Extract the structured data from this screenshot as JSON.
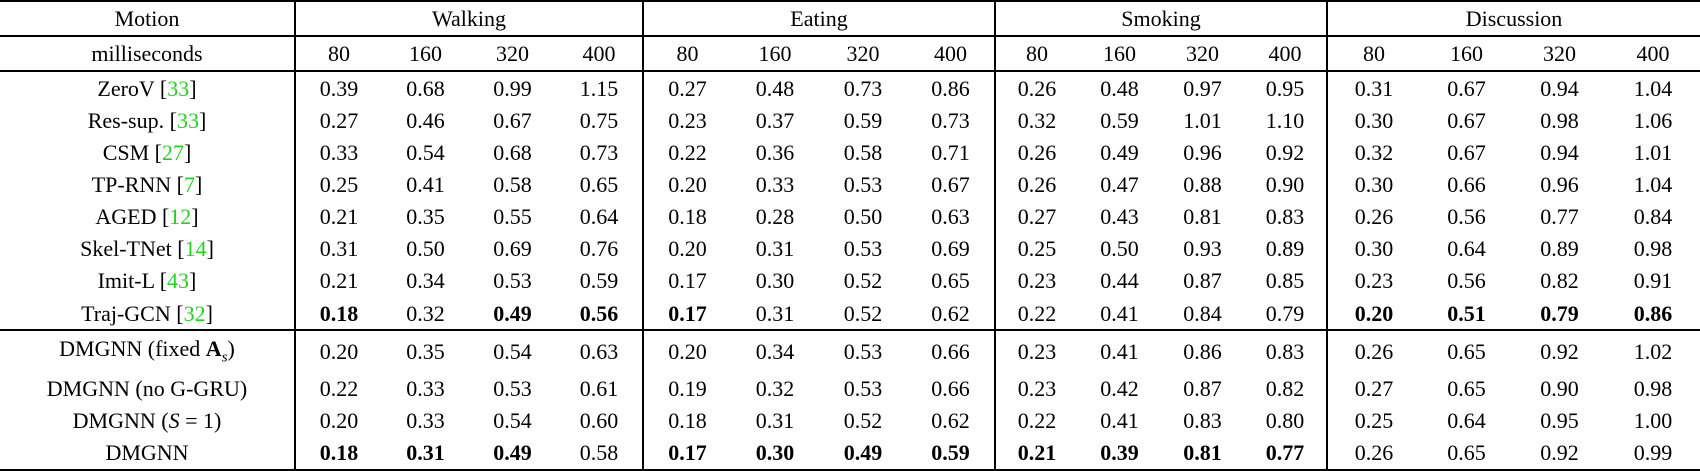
{
  "table": {
    "header": {
      "motion_label": "Motion",
      "milliseconds_label": "milliseconds",
      "groups": [
        "Walking",
        "Eating",
        "Smoking",
        "Discussion"
      ],
      "timesteps": [
        "80",
        "160",
        "320",
        "400"
      ]
    },
    "colors": {
      "citation_green": "#1fd31f",
      "text_black": "#000000",
      "background": "#ffffff"
    },
    "rows": [
      {
        "label_html": "ZeroV [<span class=\"cite\">33</span>]",
        "cells": [
          "0.39",
          "0.68",
          "0.99",
          "1.15",
          "0.27",
          "0.48",
          "0.73",
          "0.86",
          "0.26",
          "0.48",
          "0.97",
          "0.95",
          "0.31",
          "0.67",
          "0.94",
          "1.04"
        ],
        "bold": [],
        "section_start": false
      },
      {
        "label_html": "Res-sup. [<span class=\"cite\">33</span>]",
        "cells": [
          "0.27",
          "0.46",
          "0.67",
          "0.75",
          "0.23",
          "0.37",
          "0.59",
          "0.73",
          "0.32",
          "0.59",
          "1.01",
          "1.10",
          "0.30",
          "0.67",
          "0.98",
          "1.06"
        ],
        "bold": [],
        "section_start": false
      },
      {
        "label_html": "CSM [<span class=\"cite\">27</span>]",
        "cells": [
          "0.33",
          "0.54",
          "0.68",
          "0.73",
          "0.22",
          "0.36",
          "0.58",
          "0.71",
          "0.26",
          "0.49",
          "0.96",
          "0.92",
          "0.32",
          "0.67",
          "0.94",
          "1.01"
        ],
        "bold": [],
        "section_start": false
      },
      {
        "label_html": "TP-RNN [<span class=\"cite\">7</span>]",
        "cells": [
          "0.25",
          "0.41",
          "0.58",
          "0.65",
          "0.20",
          "0.33",
          "0.53",
          "0.67",
          "0.26",
          "0.47",
          "0.88",
          "0.90",
          "0.30",
          "0.66",
          "0.96",
          "1.04"
        ],
        "bold": [],
        "section_start": false
      },
      {
        "label_html": "AGED [<span class=\"cite\">12</span>]",
        "cells": [
          "0.21",
          "0.35",
          "0.55",
          "0.64",
          "0.18",
          "0.28",
          "0.50",
          "0.63",
          "0.27",
          "0.43",
          "0.81",
          "0.83",
          "0.26",
          "0.56",
          "0.77",
          "0.84"
        ],
        "bold": [],
        "section_start": false
      },
      {
        "label_html": "Skel-TNet [<span class=\"cite\">14</span>]",
        "cells": [
          "0.31",
          "0.50",
          "0.69",
          "0.76",
          "0.20",
          "0.31",
          "0.53",
          "0.69",
          "0.25",
          "0.50",
          "0.93",
          "0.89",
          "0.30",
          "0.64",
          "0.89",
          "0.98"
        ],
        "bold": [],
        "section_start": false
      },
      {
        "label_html": "Imit-L [<span class=\"cite\">43</span>]",
        "cells": [
          "0.21",
          "0.34",
          "0.53",
          "0.59",
          "0.17",
          "0.30",
          "0.52",
          "0.65",
          "0.23",
          "0.44",
          "0.87",
          "0.85",
          "0.23",
          "0.56",
          "0.82",
          "0.91"
        ],
        "bold": [],
        "section_start": false
      },
      {
        "label_html": "Traj-GCN [<span class=\"cite\">32</span>]",
        "cells": [
          "0.18",
          "0.32",
          "0.49",
          "0.56",
          "0.17",
          "0.31",
          "0.52",
          "0.62",
          "0.22",
          "0.41",
          "0.84",
          "0.79",
          "0.20",
          "0.51",
          "0.79",
          "0.86"
        ],
        "bold": [
          0,
          2,
          3,
          4,
          12,
          13,
          14,
          15
        ],
        "section_start": false
      },
      {
        "label_html": "DMGNN (fixed <b>A</b><sub>s</sub>)",
        "cells": [
          "0.20",
          "0.35",
          "0.54",
          "0.63",
          "0.20",
          "0.34",
          "0.53",
          "0.66",
          "0.23",
          "0.41",
          "0.86",
          "0.83",
          "0.26",
          "0.65",
          "0.92",
          "1.02"
        ],
        "bold": [],
        "section_start": true
      },
      {
        "label_html": "DMGNN (no G-GRU)",
        "cells": [
          "0.22",
          "0.33",
          "0.53",
          "0.61",
          "0.19",
          "0.32",
          "0.53",
          "0.66",
          "0.23",
          "0.42",
          "0.87",
          "0.82",
          "0.27",
          "0.65",
          "0.90",
          "0.98"
        ],
        "bold": [],
        "section_start": false
      },
      {
        "label_html": "DMGNN (<i>S</i> = 1)",
        "cells": [
          "0.20",
          "0.33",
          "0.54",
          "0.60",
          "0.18",
          "0.31",
          "0.52",
          "0.62",
          "0.22",
          "0.41",
          "0.83",
          "0.80",
          "0.25",
          "0.64",
          "0.95",
          "1.00"
        ],
        "bold": [],
        "section_start": false
      },
      {
        "label_html": "DMGNN",
        "cells": [
          "0.18",
          "0.31",
          "0.49",
          "0.58",
          "0.17",
          "0.30",
          "0.49",
          "0.59",
          "0.21",
          "0.39",
          "0.81",
          "0.77",
          "0.26",
          "0.65",
          "0.92",
          "0.99"
        ],
        "bold": [
          0,
          1,
          2,
          4,
          5,
          6,
          7,
          8,
          9,
          10,
          11
        ],
        "section_start": false
      }
    ]
  }
}
